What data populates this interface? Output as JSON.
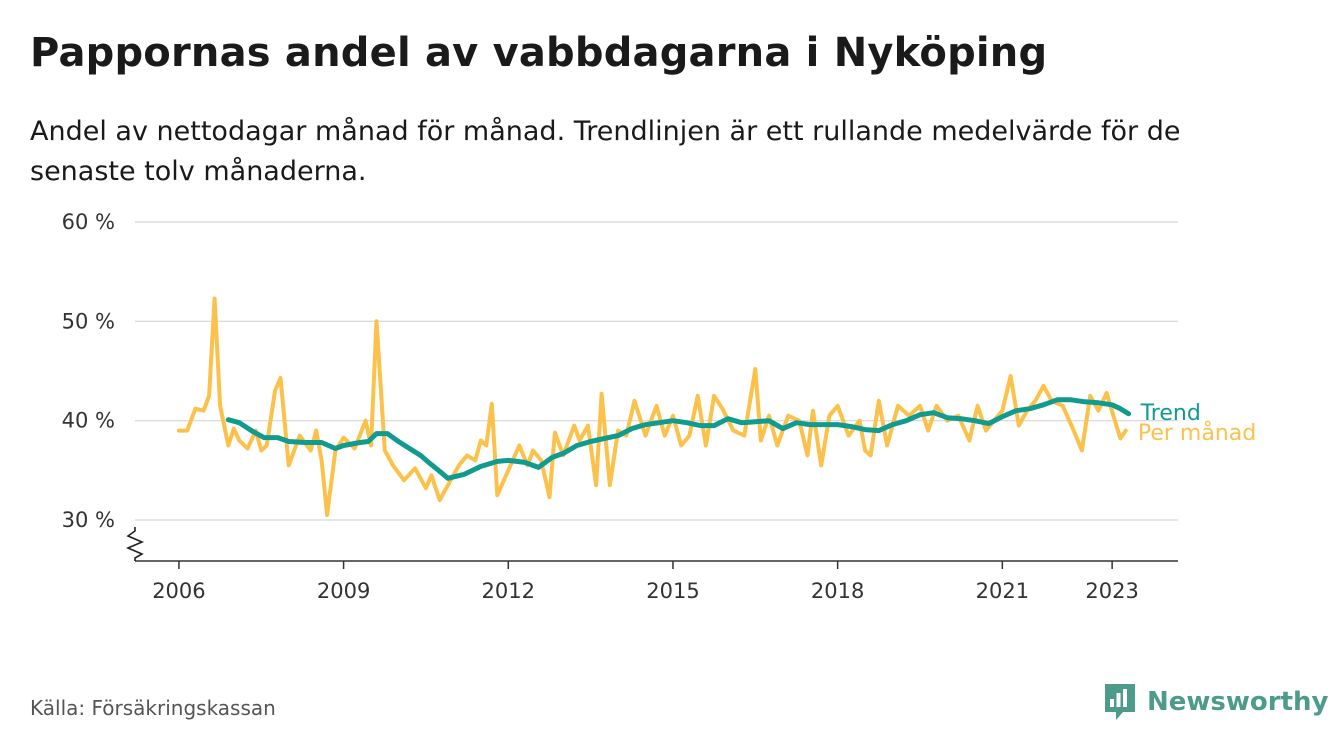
{
  "title": "Pappornas andel av vabbdagarna i Nyköping",
  "subtitle": "Andel av nettodagar månad för månad. Trendlinjen är ett rullande medelvärde för de senaste tolv månaderna.",
  "source": "Källa: Försäkringskassan",
  "brand": {
    "name": "Newsworthy",
    "icon": "newsworthy-logo-icon",
    "color": "#4d9b8b"
  },
  "chart_data": {
    "type": "line",
    "ylim": [
      30,
      60
    ],
    "yticks": [
      30,
      40,
      50,
      60
    ],
    "ytick_labels": [
      "30 %",
      "40 %",
      "50 %",
      "60 %"
    ],
    "xticks": [
      2006,
      2009,
      2012,
      2015,
      2018,
      2021,
      2023
    ],
    "xtick_labels": [
      "2006",
      "2009",
      "2012",
      "2015",
      "2018",
      "2021",
      "2023"
    ],
    "xlim": [
      2005.2,
      2024.2
    ],
    "grid": true,
    "axis_break": true,
    "series": [
      {
        "name": "Per månad",
        "color": "#fcc14a",
        "x": [
          2006.0,
          2006.15,
          2006.3,
          2006.45,
          2006.55,
          2006.65,
          2006.75,
          2006.9,
          2007.0,
          2007.1,
          2007.25,
          2007.4,
          2007.5,
          2007.6,
          2007.75,
          2007.85,
          2008.0,
          2008.2,
          2008.4,
          2008.5,
          2008.6,
          2008.7,
          2008.85,
          2009.0,
          2009.2,
          2009.4,
          2009.5,
          2009.6,
          2009.75,
          2009.9,
          2010.1,
          2010.3,
          2010.5,
          2010.6,
          2010.75,
          2010.9,
          2011.1,
          2011.25,
          2011.4,
          2011.5,
          2011.6,
          2011.7,
          2011.8,
          2012.0,
          2012.2,
          2012.35,
          2012.45,
          2012.6,
          2012.75,
          2012.85,
          2013.0,
          2013.2,
          2013.3,
          2013.45,
          2013.6,
          2013.7,
          2013.85,
          2014.0,
          2014.15,
          2014.3,
          2014.5,
          2014.7,
          2014.85,
          2015.0,
          2015.15,
          2015.3,
          2015.45,
          2015.6,
          2015.75,
          2015.9,
          2016.1,
          2016.3,
          2016.5,
          2016.6,
          2016.75,
          2016.9,
          2017.1,
          2017.3,
          2017.45,
          2017.55,
          2017.7,
          2017.85,
          2018.0,
          2018.2,
          2018.4,
          2018.5,
          2018.6,
          2018.75,
          2018.9,
          2019.1,
          2019.3,
          2019.5,
          2019.65,
          2019.8,
          2020.0,
          2020.2,
          2020.4,
          2020.55,
          2020.7,
          2020.85,
          2021.0,
          2021.15,
          2021.3,
          2021.45,
          2021.6,
          2021.75,
          2021.9,
          2022.1,
          2022.3,
          2022.45,
          2022.6,
          2022.75,
          2022.9,
          2023.05,
          2023.15,
          2023.25
        ],
        "y": [
          39.0,
          39.0,
          41.2,
          41.0,
          42.5,
          52.3,
          41.5,
          37.5,
          39.2,
          38.0,
          37.2,
          39.0,
          37.0,
          37.5,
          43.0,
          44.3,
          35.5,
          38.5,
          37.0,
          39.0,
          36.0,
          30.5,
          37.0,
          38.3,
          37.2,
          40.0,
          37.5,
          50.0,
          37.0,
          35.5,
          34.0,
          35.2,
          33.2,
          34.5,
          32.0,
          33.5,
          35.5,
          36.5,
          36.0,
          38.0,
          37.5,
          41.7,
          32.5,
          35.0,
          37.5,
          35.5,
          37.0,
          36.0,
          32.3,
          38.8,
          36.5,
          39.5,
          38.0,
          39.5,
          33.5,
          42.7,
          33.5,
          39.0,
          38.5,
          42.0,
          38.5,
          41.5,
          38.5,
          40.5,
          37.5,
          38.5,
          42.5,
          37.5,
          42.5,
          41.2,
          39.0,
          38.5,
          45.2,
          38.0,
          40.5,
          37.5,
          40.5,
          40.0,
          36.5,
          41.0,
          35.5,
          40.5,
          41.5,
          38.5,
          40.0,
          37.0,
          36.5,
          42.0,
          37.5,
          41.5,
          40.5,
          41.5,
          39.0,
          41.5,
          40.0,
          40.5,
          38.0,
          41.5,
          39.0,
          40.0,
          41.0,
          44.5,
          39.5,
          41.0,
          42.0,
          43.5,
          42.0,
          41.5,
          39.0,
          37.0,
          42.5,
          41.0,
          42.8,
          40.0,
          38.2,
          39.0
        ]
      },
      {
        "name": "Trend",
        "color": "#119b8f",
        "x": [
          2006.9,
          2007.1,
          2007.35,
          2007.55,
          2007.8,
          2008.0,
          2008.3,
          2008.6,
          2008.85,
          2009.0,
          2009.3,
          2009.45,
          2009.6,
          2009.8,
          2010.0,
          2010.2,
          2010.4,
          2010.55,
          2010.75,
          2010.9,
          2011.2,
          2011.5,
          2011.8,
          2012.0,
          2012.3,
          2012.55,
          2012.8,
          2013.0,
          2013.25,
          2013.5,
          2013.75,
          2014.0,
          2014.25,
          2014.5,
          2014.75,
          2015.0,
          2015.25,
          2015.5,
          2015.75,
          2016.0,
          2016.25,
          2016.5,
          2016.75,
          2017.0,
          2017.25,
          2017.5,
          2017.75,
          2018.0,
          2018.25,
          2018.5,
          2018.75,
          2019.0,
          2019.25,
          2019.5,
          2019.75,
          2020.0,
          2020.25,
          2020.5,
          2020.75,
          2021.0,
          2021.25,
          2021.5,
          2021.75,
          2022.0,
          2022.25,
          2022.5,
          2022.75,
          2023.0,
          2023.15,
          2023.3
        ],
        "y": [
          40.1,
          39.8,
          38.9,
          38.3,
          38.3,
          37.9,
          37.8,
          37.8,
          37.2,
          37.5,
          37.8,
          37.9,
          38.7,
          38.7,
          37.9,
          37.2,
          36.5,
          35.8,
          34.9,
          34.2,
          34.6,
          35.4,
          35.9,
          36.0,
          35.8,
          35.3,
          36.3,
          36.7,
          37.5,
          37.9,
          38.2,
          38.5,
          39.2,
          39.6,
          39.8,
          40.0,
          39.8,
          39.5,
          39.5,
          40.2,
          39.8,
          39.9,
          40.0,
          39.2,
          39.8,
          39.6,
          39.6,
          39.6,
          39.4,
          39.1,
          39.0,
          39.6,
          40.0,
          40.6,
          40.8,
          40.3,
          40.2,
          40.0,
          39.7,
          40.4,
          41.0,
          41.2,
          41.6,
          42.1,
          42.1,
          41.9,
          41.8,
          41.6,
          41.2,
          40.7
        ]
      }
    ]
  }
}
